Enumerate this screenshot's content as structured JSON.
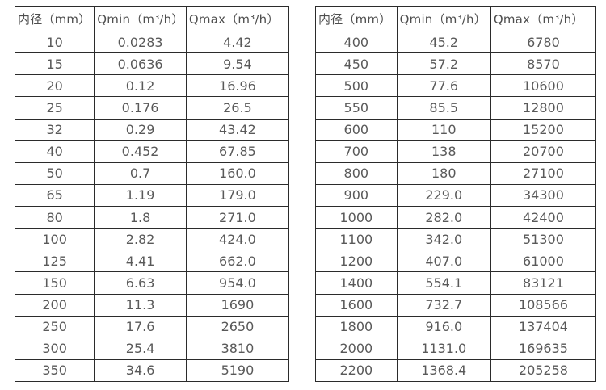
{
  "page": {
    "background_color": "#ffffff",
    "border_color": "#2b2b2b",
    "text_color": "#595959"
  },
  "tables": [
    {
      "name": "small-diameter-flow-table",
      "columns": [
        "内径（mm）",
        "Qmin（m³/h）",
        "Qmax（m³/h）"
      ],
      "rows": [
        [
          "10",
          "0.0283",
          "4.42"
        ],
        [
          "15",
          "0.0636",
          "9.54"
        ],
        [
          "20",
          "0.12",
          "16.96"
        ],
        [
          "25",
          "0.176",
          "26.5"
        ],
        [
          "32",
          "0.29",
          "43.42"
        ],
        [
          "40",
          "0.452",
          "67.85"
        ],
        [
          "50",
          "0.7",
          "160.0"
        ],
        [
          "65",
          "1.19",
          "179.0"
        ],
        [
          "80",
          "1.8",
          "271.0"
        ],
        [
          "100",
          "2.82",
          "424.0"
        ],
        [
          "125",
          "4.41",
          "662.0"
        ],
        [
          "150",
          "6.63",
          "954.0"
        ],
        [
          "200",
          "11.3",
          "1690"
        ],
        [
          "250",
          "17.6",
          "2650"
        ],
        [
          "300",
          "25.4",
          "3810"
        ],
        [
          "350",
          "34.6",
          "5190"
        ]
      ]
    },
    {
      "name": "large-diameter-flow-table",
      "columns": [
        "内径（mm）",
        "Qmin（m³/h）",
        "Qmax（m³/h）"
      ],
      "rows": [
        [
          "400",
          "45.2",
          "6780"
        ],
        [
          "450",
          "57.2",
          "8570"
        ],
        [
          "500",
          "77.6",
          "10600"
        ],
        [
          "550",
          "85.5",
          "12800"
        ],
        [
          "600",
          "110",
          "15200"
        ],
        [
          "700",
          "138",
          "20700"
        ],
        [
          "800",
          "180",
          "27100"
        ],
        [
          "900",
          "229.0",
          "34300"
        ],
        [
          "1000",
          "282.0",
          "42400"
        ],
        [
          "1100",
          "342.0",
          "51300"
        ],
        [
          "1200",
          "407.0",
          "61000"
        ],
        [
          "1400",
          "554.1",
          "83121"
        ],
        [
          "1600",
          "732.7",
          "108566"
        ],
        [
          "1800",
          "916.0",
          "137404"
        ],
        [
          "2000",
          "1131.0",
          "169635"
        ],
        [
          "2200",
          "1368.4",
          "205258"
        ]
      ]
    }
  ]
}
